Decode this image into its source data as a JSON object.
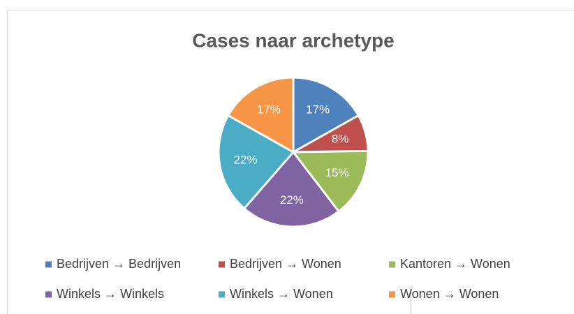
{
  "chart_data": {
    "type": "pie",
    "title": "Cases naar archetype",
    "categories": [
      "Bedrijven → Bedrijven",
      "Bedrijven → Wonen",
      "Kantoren → Wonen",
      "Winkels → Winkels",
      "Winkels → Wonen",
      "Wonen → Wonen"
    ],
    "values": [
      17,
      8,
      15,
      22,
      22,
      17
    ],
    "value_labels": [
      "17%",
      "8%",
      "15%",
      "22%",
      "22%",
      "17%"
    ],
    "colors": [
      "#4f81bd",
      "#c0504d",
      "#9bbb59",
      "#8064a2",
      "#4bacc6",
      "#f79646"
    ],
    "legend": "bottom"
  }
}
